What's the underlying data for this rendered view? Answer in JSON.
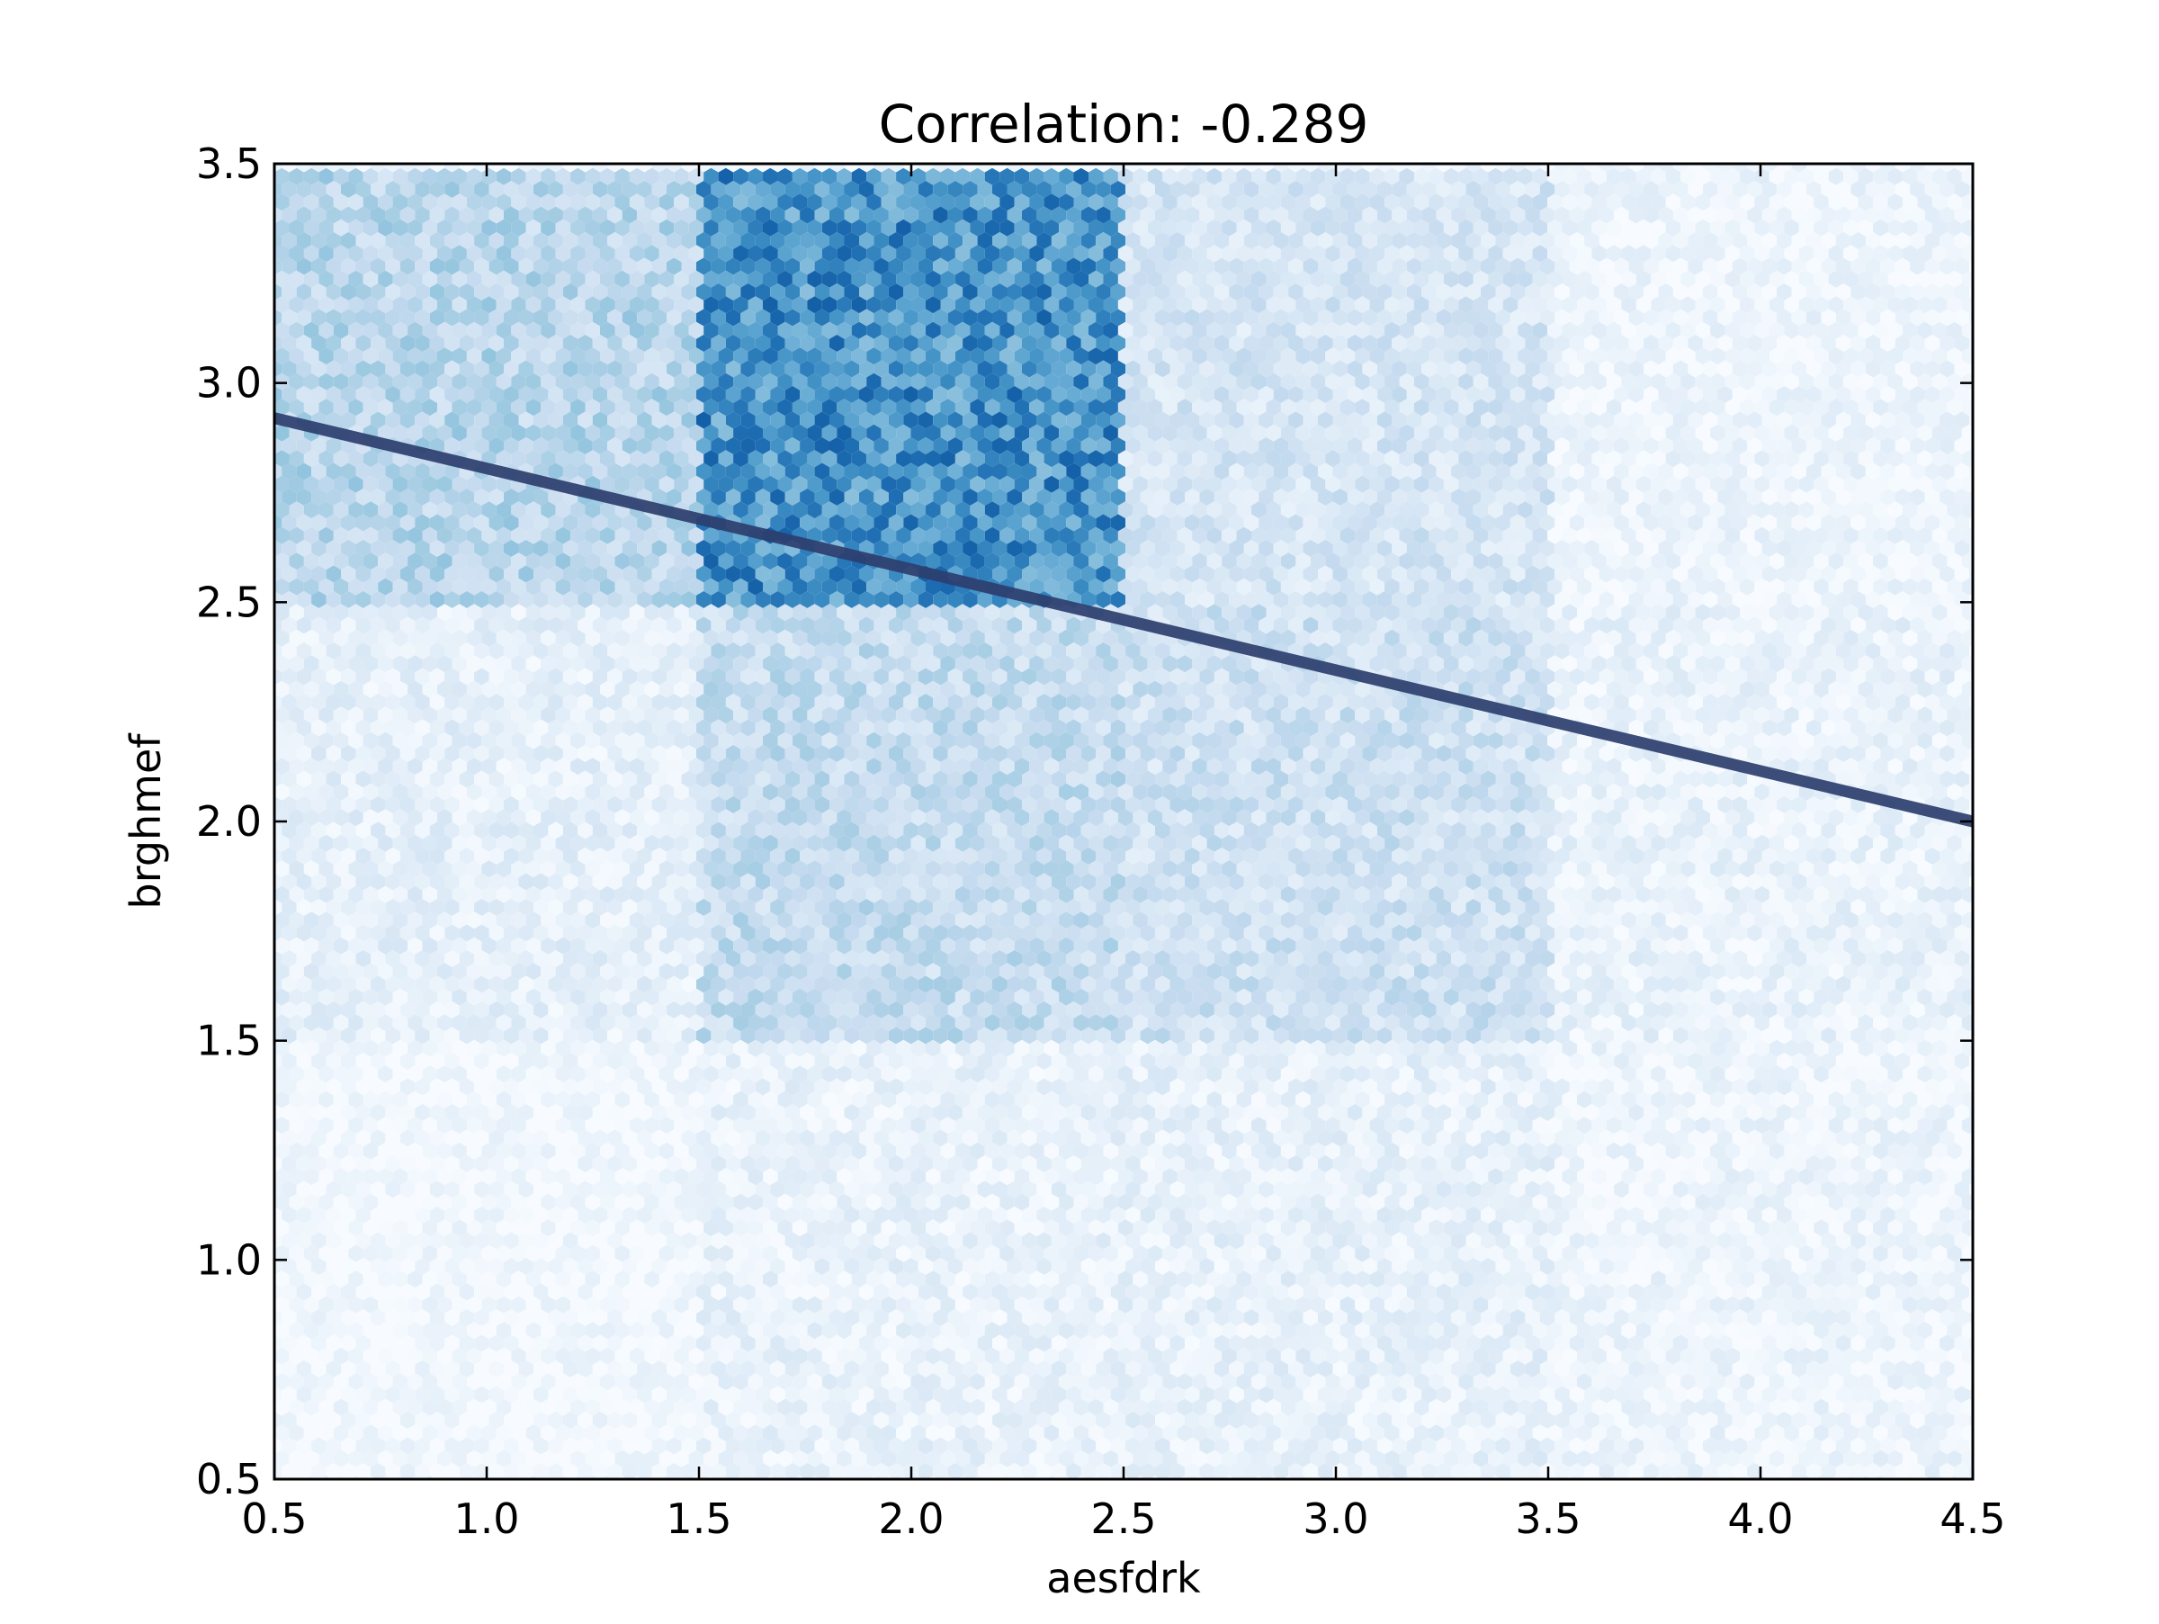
{
  "chart_data": {
    "type": "heatmap",
    "subtype": "hexbin with linear regression line",
    "title": "Correlation: -0.289",
    "xlabel": "aesfdrk",
    "ylabel": "brghmef",
    "xlim": [
      0.5,
      4.5
    ],
    "ylim": [
      0.5,
      3.5
    ],
    "x_ticks": [
      "0.5",
      "1.0",
      "1.5",
      "2.0",
      "2.5",
      "3.0",
      "3.5",
      "4.0",
      "4.5"
    ],
    "y_ticks": [
      "0.5",
      "1.0",
      "1.5",
      "2.0",
      "2.5",
      "3.0",
      "3.5"
    ],
    "grid": false,
    "colormap": "Blues",
    "regression_line": {
      "x": [
        0.5,
        4.5
      ],
      "y": [
        2.92,
        2.0
      ],
      "color": "#2c3e6e"
    },
    "density_regions": [
      {
        "x_range": [
          0.5,
          1.5
        ],
        "y_range": [
          2.5,
          3.5
        ],
        "relative_density": 0.28
      },
      {
        "x_range": [
          1.5,
          2.5
        ],
        "y_range": [
          2.5,
          3.5
        ],
        "relative_density": 0.62
      },
      {
        "x_range": [
          2.5,
          3.5
        ],
        "y_range": [
          2.5,
          3.5
        ],
        "relative_density": 0.17
      },
      {
        "x_range": [
          3.5,
          4.5
        ],
        "y_range": [
          2.5,
          3.5
        ],
        "relative_density": 0.05
      },
      {
        "x_range": [
          0.5,
          1.5
        ],
        "y_range": [
          1.5,
          2.5
        ],
        "relative_density": 0.09
      },
      {
        "x_range": [
          1.5,
          2.5
        ],
        "y_range": [
          1.5,
          2.5
        ],
        "relative_density": 0.24
      },
      {
        "x_range": [
          2.5,
          3.5
        ],
        "y_range": [
          1.5,
          2.5
        ],
        "relative_density": 0.2
      },
      {
        "x_range": [
          3.5,
          4.5
        ],
        "y_range": [
          1.5,
          2.5
        ],
        "relative_density": 0.07
      },
      {
        "x_range": [
          0.5,
          1.5
        ],
        "y_range": [
          0.5,
          1.5
        ],
        "relative_density": 0.03
      },
      {
        "x_range": [
          1.5,
          2.5
        ],
        "y_range": [
          0.5,
          1.5
        ],
        "relative_density": 0.07
      },
      {
        "x_range": [
          2.5,
          3.5
        ],
        "y_range": [
          0.5,
          1.5
        ],
        "relative_density": 0.08
      },
      {
        "x_range": [
          3.5,
          4.5
        ],
        "y_range": [
          0.5,
          1.5
        ],
        "relative_density": 0.05
      }
    ]
  }
}
